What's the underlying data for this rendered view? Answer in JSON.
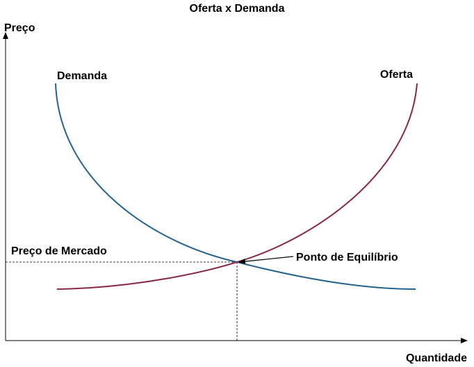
{
  "title": "Oferta x Demanda",
  "axes": {
    "y_label": "Preço",
    "x_label": "Quantidade"
  },
  "curves": {
    "demand": "Demanda",
    "supply": "Oferta"
  },
  "annotations": {
    "market_price": "Preço de Mercado",
    "equilibrium": "Ponto de Equilíbrio"
  }
}
